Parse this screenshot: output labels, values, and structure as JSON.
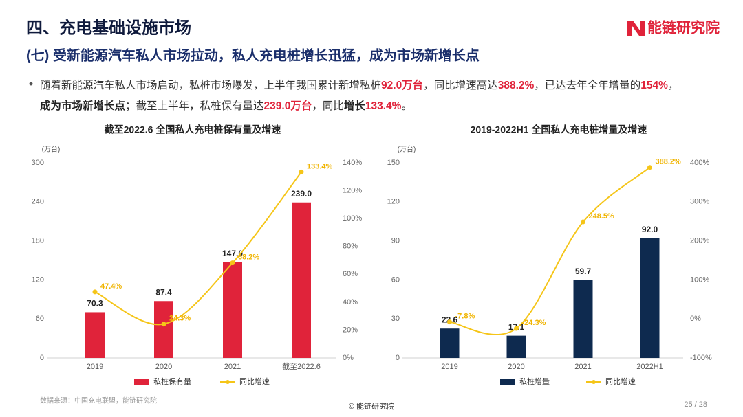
{
  "header": {
    "title": "四、充电基础设施市场",
    "subtitle": "(七) 受新能源汽车私人市场拉动，私人充电桩增长迅猛，成为市场新增长点",
    "logo": "能链研究院"
  },
  "bullet_lines": [
    [
      {
        "text": "随着新能源汽车私人市场启动，私桩市场爆发，上半年我国累计新增私桩",
        "style": "normal"
      },
      {
        "text": "92.0万台",
        "style": "red"
      },
      {
        "text": "，同比增速高达",
        "style": "normal"
      },
      {
        "text": "388.2%",
        "style": "red"
      },
      {
        "text": "，已达去年全年增量的",
        "style": "normal"
      },
      {
        "text": "154%",
        "style": "red"
      },
      {
        "text": "，",
        "style": "normal"
      }
    ],
    [
      {
        "text": "成为市场新增长点",
        "style": "bold"
      },
      {
        "text": "；截至上半年，私桩保有量达",
        "style": "normal"
      },
      {
        "text": "239.0万台",
        "style": "red"
      },
      {
        "text": "，同比",
        "style": "normal"
      },
      {
        "text": "增长",
        "style": "bold"
      },
      {
        "text": "133.4%",
        "style": "red"
      },
      {
        "text": "。",
        "style": "normal"
      }
    ]
  ],
  "chart_data": [
    {
      "type": "bar_line",
      "title": "截至2022.6 全国私人充电桩保有量及增速",
      "y_label": "(万台)",
      "categories": [
        "2019",
        "2020",
        "2021",
        "截至2022.6"
      ],
      "series": [
        {
          "name": "私桩保有量",
          "color": "#e0233a",
          "values": [
            70.3,
            87.4,
            147.0,
            239.0
          ],
          "value_labels": [
            "70.3",
            "87.4",
            "147.0",
            "239.0"
          ]
        },
        {
          "name": "同比增速",
          "color": "#f5c518",
          "axis": "y2",
          "values": [
            47.4,
            24.3,
            68.2,
            133.4
          ],
          "value_labels": [
            "47.4%",
            "24.3%",
            "68.2%",
            "133.4%"
          ]
        }
      ],
      "ylim": [
        0,
        300
      ],
      "yticks": [
        0,
        60,
        120,
        180,
        240,
        300
      ],
      "y2lim": [
        0,
        140
      ],
      "y2ticks": [
        {
          "value": 0,
          "label": "0%"
        },
        {
          "value": 20,
          "label": "20%"
        },
        {
          "value": 40,
          "label": "40%"
        },
        {
          "value": 60,
          "label": "60%"
        },
        {
          "value": 80,
          "label": "80%"
        },
        {
          "value": 100,
          "label": "100%"
        },
        {
          "value": 120,
          "label": "120%"
        },
        {
          "value": 140,
          "label": "140%"
        }
      ]
    },
    {
      "type": "bar_line",
      "title": "2019-2022H1 全国私人充电桩增量及增速",
      "y_label": "(万台)",
      "categories": [
        "2019",
        "2020",
        "2021",
        "2022H1"
      ],
      "series": [
        {
          "name": "私桩增量",
          "color": "#0e2a4f",
          "values": [
            22.6,
            17.1,
            59.7,
            92.0
          ],
          "value_labels": [
            "22.6",
            "17.1",
            "59.7",
            "92.0"
          ]
        },
        {
          "name": "同比增速",
          "color": "#f5c518",
          "axis": "y2",
          "values": [
            -7.8,
            -24.3,
            248.5,
            388.2
          ],
          "value_labels": [
            "-7.8%",
            "-24.3%",
            "248.5%",
            "388.2%"
          ]
        }
      ],
      "ylim": [
        0,
        150
      ],
      "yticks": [
        0,
        30,
        60,
        90,
        120,
        150
      ],
      "y2lim": [
        -100,
        400
      ],
      "y2ticks": [
        {
          "value": -100,
          "label": "-100%"
        },
        {
          "value": 0,
          "label": "0%"
        },
        {
          "value": 100,
          "label": "100%"
        },
        {
          "value": 200,
          "label": "200%"
        },
        {
          "value": 300,
          "label": "300%"
        },
        {
          "value": 400,
          "label": "400%"
        }
      ]
    }
  ],
  "footer": {
    "source": "数据来源：中国充电联盟，能链研究院",
    "center": "© 能链研究院",
    "page": "25 / 28"
  }
}
